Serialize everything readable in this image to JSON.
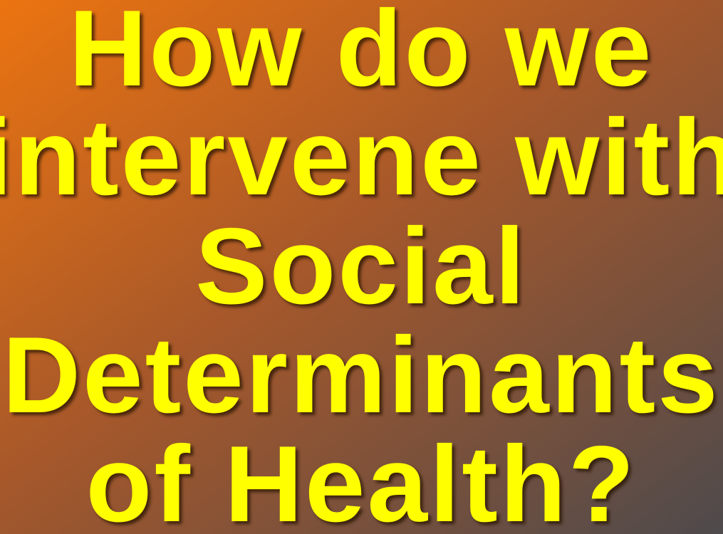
{
  "slide": {
    "title_lines": [
      "How do we",
      "intervene with",
      "Social",
      "Determinants",
      "of Health?"
    ]
  }
}
